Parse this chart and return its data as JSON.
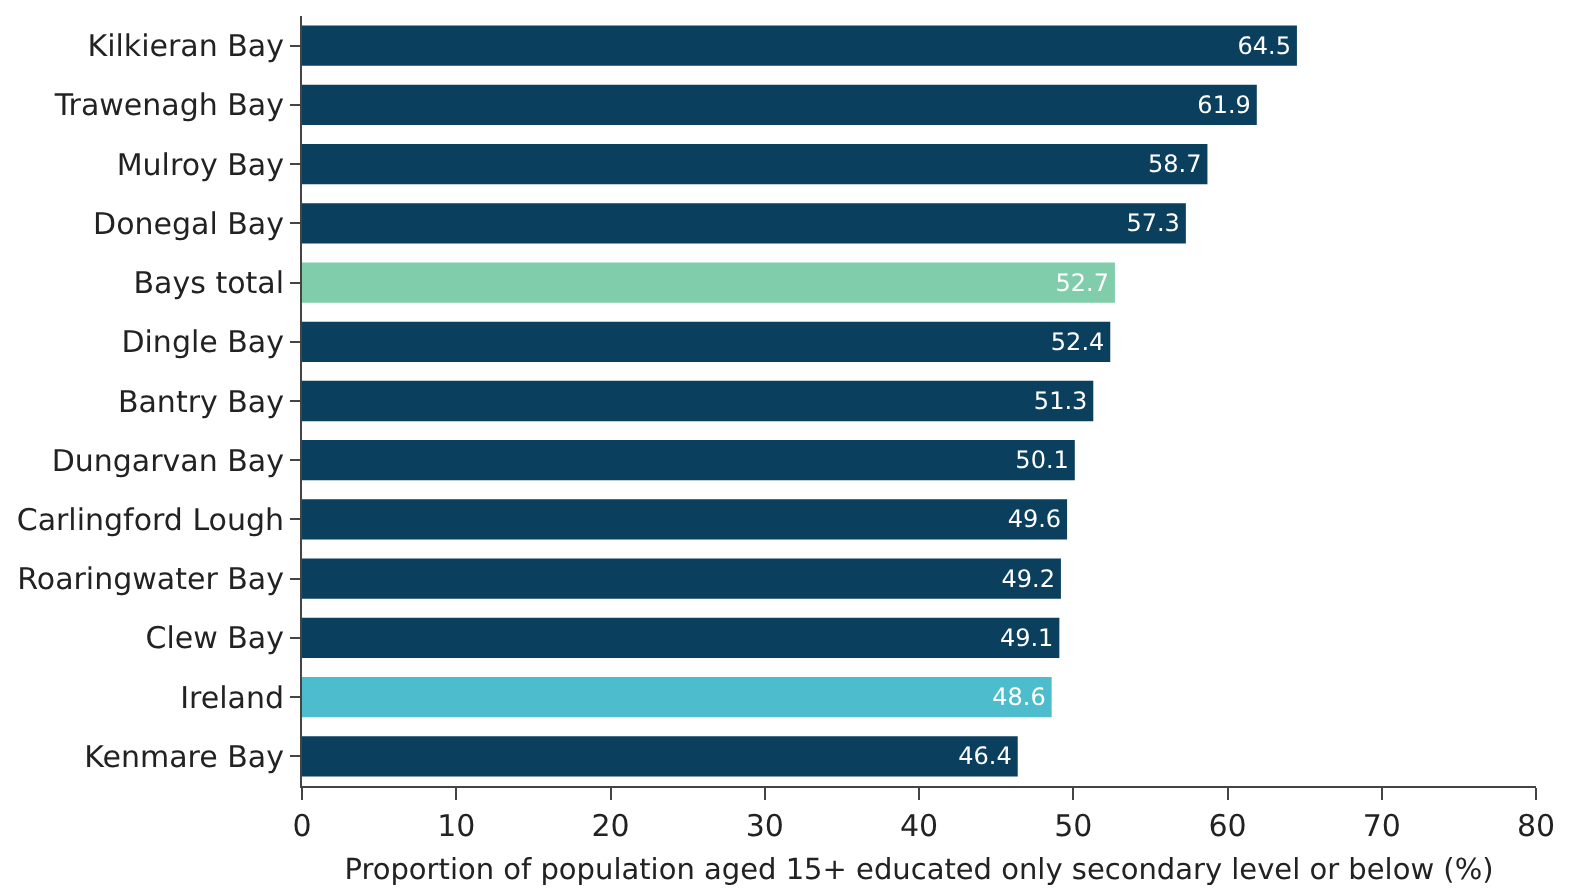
{
  "chart_data": {
    "type": "bar",
    "orientation": "horizontal",
    "xlabel": "Proportion of population aged 15+ educated only secondary level or below (%)",
    "categories": [
      "Kilkieran Bay",
      "Trawenagh Bay",
      "Mulroy Bay",
      "Donegal Bay",
      "Bays total",
      "Dingle Bay",
      "Bantry Bay",
      "Dungarvan Bay",
      "Carlingford Lough",
      "Roaringwater Bay",
      "Clew Bay",
      "Ireland",
      "Kenmare Bay"
    ],
    "values": [
      64.5,
      61.9,
      58.7,
      57.3,
      52.7,
      52.4,
      51.3,
      50.1,
      49.6,
      49.2,
      49.1,
      48.6,
      46.4
    ],
    "colors": [
      "#0b3f5e",
      "#0b3f5e",
      "#0b3f5e",
      "#0b3f5e",
      "#7fcdaa",
      "#0b3f5e",
      "#0b3f5e",
      "#0b3f5e",
      "#0b3f5e",
      "#0b3f5e",
      "#0b3f5e",
      "#4dbccc",
      "#0b3f5e"
    ],
    "xlim": [
      0,
      80
    ],
    "xticks": [
      0,
      10,
      20,
      30,
      40,
      50,
      60,
      70,
      80
    ],
    "data_labels": true
  }
}
